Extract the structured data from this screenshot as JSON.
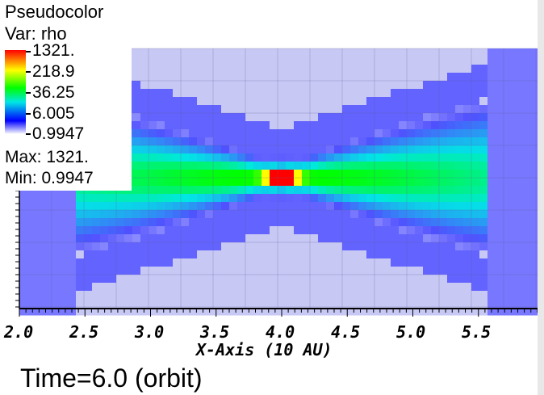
{
  "legend": {
    "title": "Pseudocolor",
    "var": "Var: rho",
    "ticks": [
      "1321.",
      "218.9",
      "36.25",
      "6.005",
      "0.9947"
    ],
    "max": "Max:  1321.",
    "min": "Min:  0.9947"
  },
  "xaxis": {
    "title": "X-Axis (10 AU)",
    "tick_labels": [
      "2.0",
      "2.5",
      "3.0",
      "3.5",
      "4.0",
      "4.5",
      "5.0",
      "5.5"
    ]
  },
  "time_label": "Time=6.0 (orbit)",
  "chart_data": {
    "type": "heatmap",
    "variable": "rho",
    "color_scale": "log",
    "colors": [
      "#ff0000",
      "#ffff00",
      "#00ff00",
      "#00ffff",
      "#0000ff",
      "#ffffff"
    ],
    "vmin": 0.9947,
    "vmax": 1321,
    "xlabel": "X-Axis (10 AU)",
    "xlim": [
      2.0,
      6.0
    ],
    "x_ticks": [
      2.0,
      2.5,
      3.0,
      3.5,
      4.0,
      4.5,
      5.0,
      5.5
    ],
    "peak_location_x": 4.0
  }
}
